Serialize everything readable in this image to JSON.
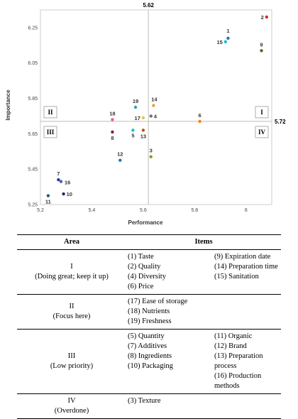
{
  "chart_data": {
    "type": "scatter",
    "xlabel": "Performance",
    "ylabel": "Importance",
    "xlim": [
      5.2,
      6.1
    ],
    "ylim": [
      5.25,
      6.35
    ],
    "x_ticks": [
      "5.2",
      "5.4",
      "5.6",
      "5.8",
      "6"
    ],
    "x_tick_values": [
      5.2,
      5.4,
      5.6,
      5.8,
      6.0
    ],
    "y_ticks": [
      "5.25",
      "5.45",
      "5.65",
      "5.85",
      "6.05",
      "6.25"
    ],
    "y_tick_values": [
      5.25,
      5.45,
      5.65,
      5.85,
      6.05,
      6.25
    ],
    "x_mean": 5.62,
    "y_mean": 5.72,
    "x_mean_label": "5.62",
    "y_mean_label": "5.72",
    "quadrant_labels": {
      "q1": "I",
      "q2": "II",
      "q3": "III",
      "q4": "IV"
    },
    "grid": false,
    "points": [
      {
        "id": "1",
        "x": 5.93,
        "y": 6.19,
        "color": "#1f77b4"
      },
      {
        "id": "2",
        "x": 6.08,
        "y": 6.31,
        "color": "#d62728"
      },
      {
        "id": "3",
        "x": 5.63,
        "y": 5.52,
        "color": "#8c9a1b"
      },
      {
        "id": "4",
        "x": 5.63,
        "y": 5.75,
        "color": "#6b6f80"
      },
      {
        "id": "5",
        "x": 5.56,
        "y": 5.67,
        "color": "#17becf"
      },
      {
        "id": "6",
        "x": 5.82,
        "y": 5.72,
        "color": "#ff7f0e"
      },
      {
        "id": "7",
        "x": 5.27,
        "y": 5.39,
        "color": "#1f3a93"
      },
      {
        "id": "8",
        "x": 5.48,
        "y": 5.66,
        "color": "#8b1a3a"
      },
      {
        "id": "9",
        "x": 6.06,
        "y": 6.12,
        "color": "#4a6b1f"
      },
      {
        "id": "10",
        "x": 5.29,
        "y": 5.31,
        "color": "#1a2f6b"
      },
      {
        "id": "11",
        "x": 5.23,
        "y": 5.3,
        "color": "#0b6b5a"
      },
      {
        "id": "12",
        "x": 5.51,
        "y": 5.5,
        "color": "#1f77b4"
      },
      {
        "id": "13",
        "x": 5.6,
        "y": 5.67,
        "color": "#c0501a"
      },
      {
        "id": "14",
        "x": 5.64,
        "y": 5.81,
        "color": "#f0a030"
      },
      {
        "id": "15",
        "x": 5.92,
        "y": 6.17,
        "color": "#17becf"
      },
      {
        "id": "16",
        "x": 5.28,
        "y": 5.38,
        "color": "#4a5ea8"
      },
      {
        "id": "17",
        "x": 5.6,
        "y": 5.74,
        "color": "#e8c547"
      },
      {
        "id": "18",
        "x": 5.48,
        "y": 5.73,
        "color": "#e8607a"
      },
      {
        "id": "19",
        "x": 5.57,
        "y": 5.8,
        "color": "#2ca4a0"
      }
    ]
  },
  "table": {
    "header_area": "Area",
    "header_items": "Items",
    "rows": [
      {
        "area_line1": "I",
        "area_line2": "(Doing great; keep it up)",
        "col_a": [
          "(1) Taste",
          "(2) Quality",
          "(4) Diversity",
          "(6) Price"
        ],
        "col_b": [
          "(9) Expiration date",
          "(14) Preparation time",
          "(15) Sanitation"
        ]
      },
      {
        "area_line1": "II",
        "area_line2": "(Focus here)",
        "col_a": [
          "(17) Ease of storage",
          "(18) Nutrients",
          "(19) Freshness"
        ],
        "col_b": []
      },
      {
        "area_line1": "III",
        "area_line2": "(Low priority)",
        "col_a": [
          "(5) Quantity",
          "(7) Additives",
          "(8) Ingredients",
          "(10) Packaging"
        ],
        "col_b": [
          "(11) Organic",
          "(12) Brand",
          "(13) Preparation process",
          "(16) Production methods"
        ]
      },
      {
        "area_line1": "IV",
        "area_line2": "(Overdone)",
        "col_a": [
          "(3) Texture"
        ],
        "col_b": []
      }
    ]
  }
}
